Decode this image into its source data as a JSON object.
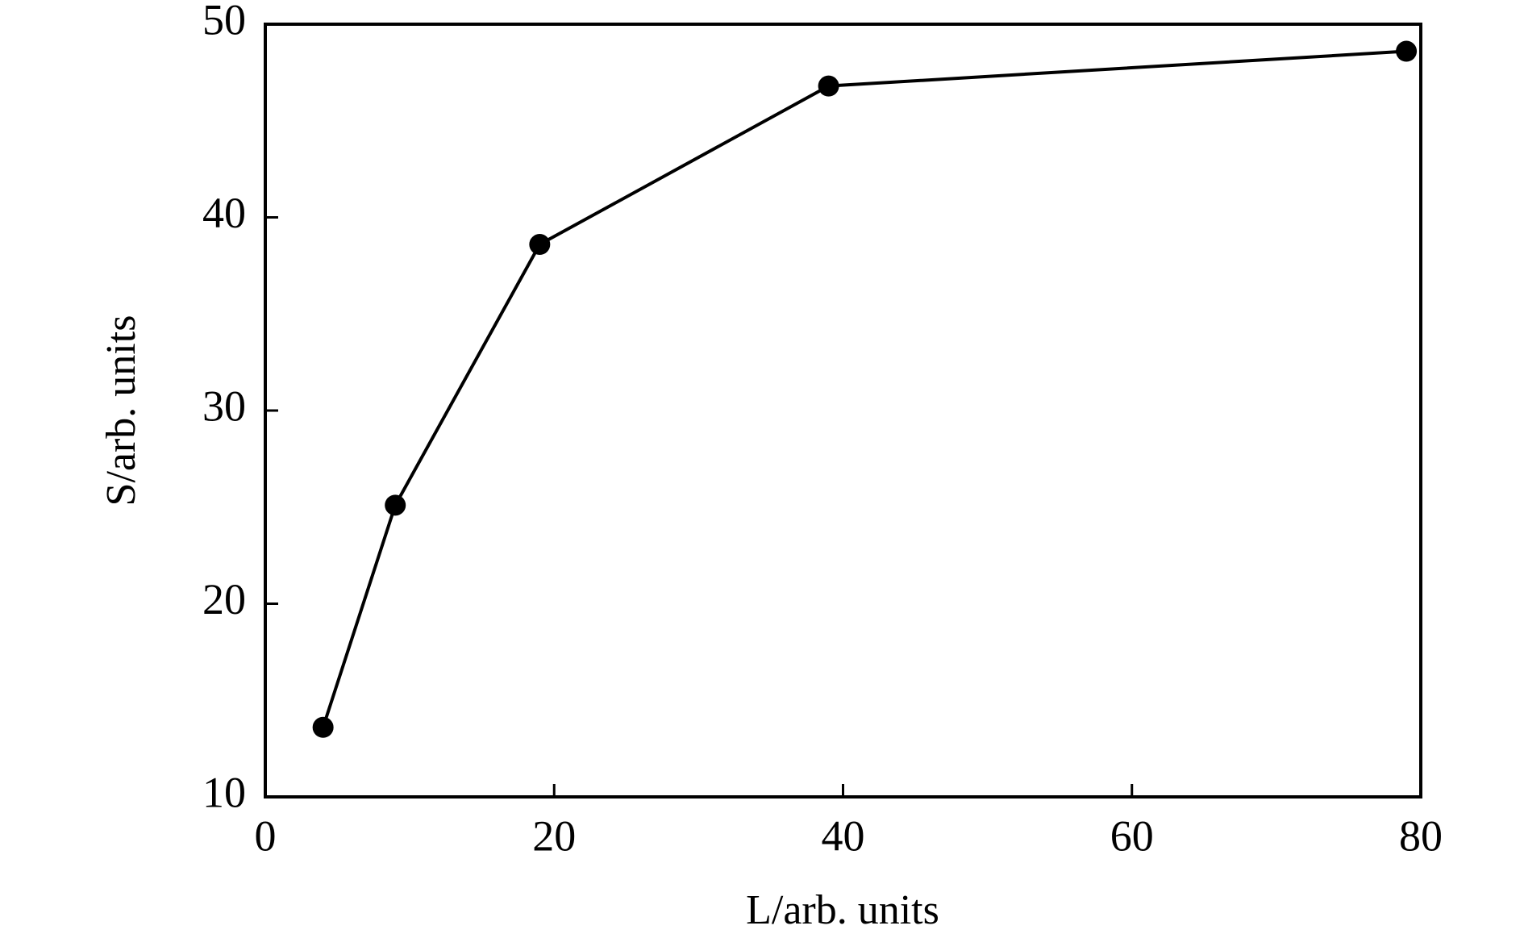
{
  "chart_data": {
    "type": "line",
    "x_label": "L/arb. units",
    "y_label": "S/arb. units",
    "x": [
      4,
      9,
      19,
      39,
      79
    ],
    "series": [
      {
        "color": "#000000",
        "values": [
          13.6,
          25.1,
          38.6,
          46.8,
          48.6
        ]
      }
    ],
    "xlim": [
      0,
      80
    ],
    "xticks": [
      0,
      20,
      40,
      60,
      80
    ],
    "ylim": [
      10,
      50
    ],
    "yticks": [
      10,
      20,
      30,
      40,
      50
    ]
  }
}
